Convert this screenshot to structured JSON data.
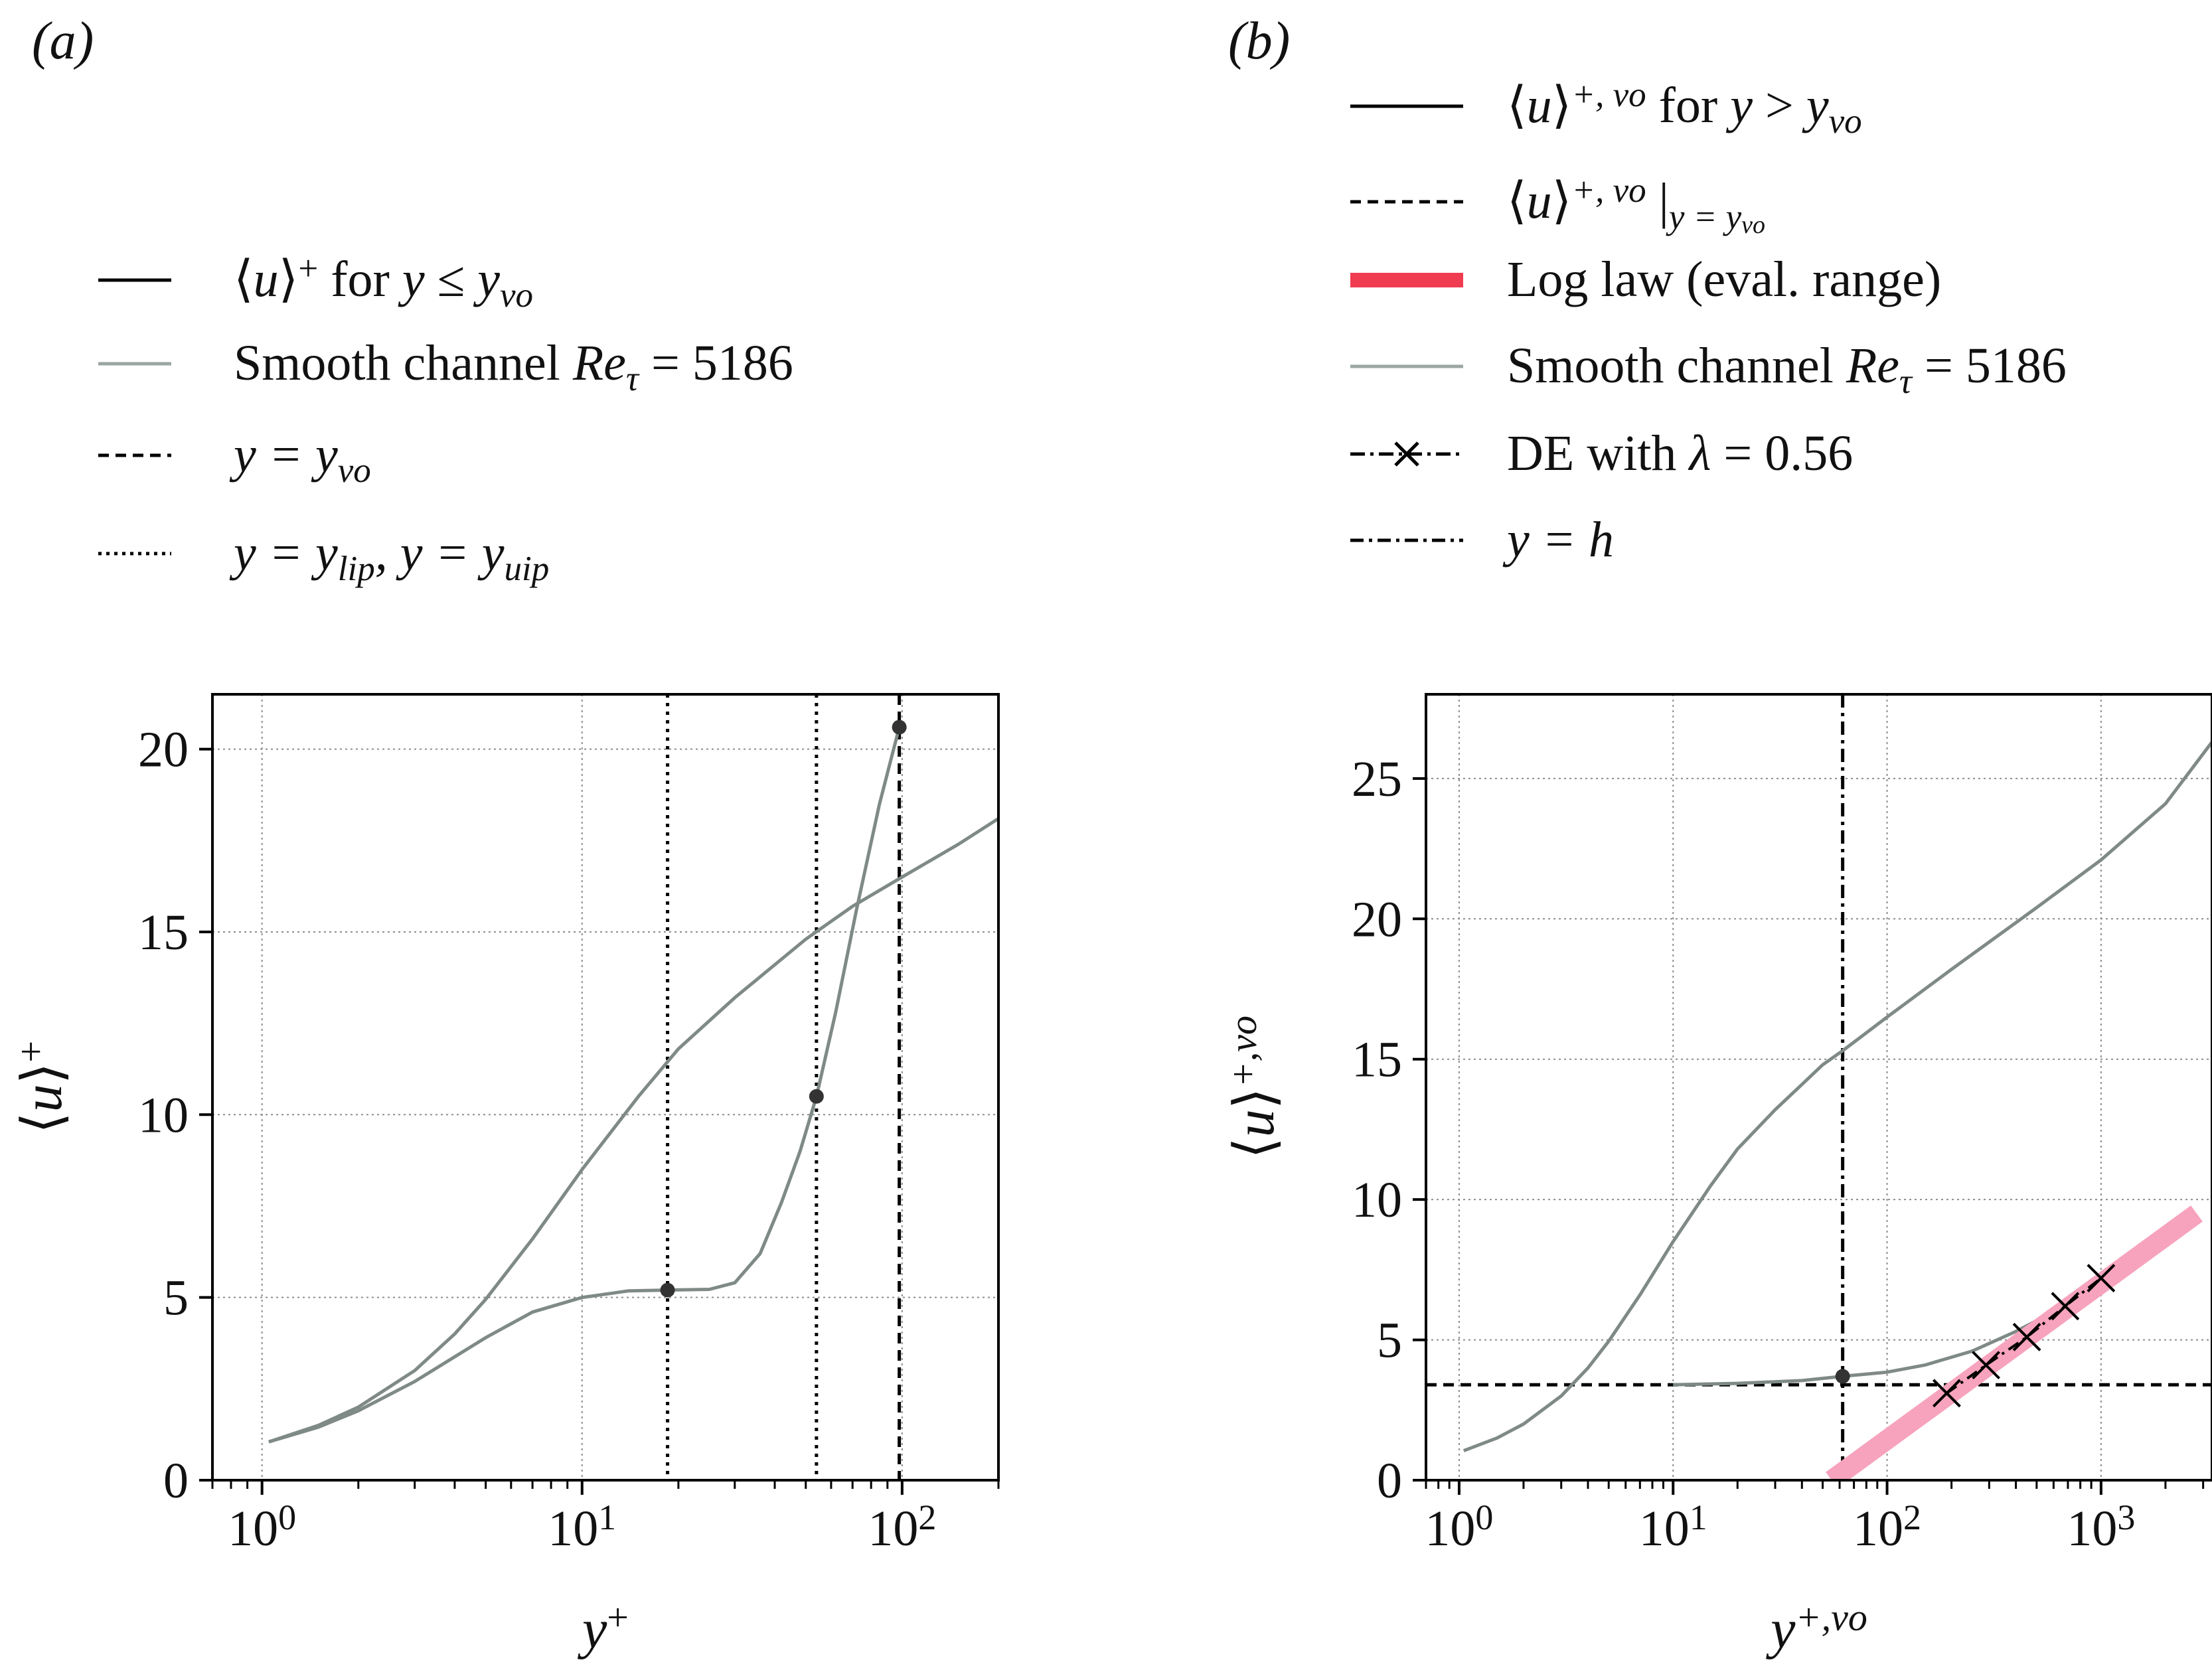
{
  "chart_data": [
    {
      "panel_label": "(a)",
      "type": "line",
      "x_scale": "log",
      "xlabel": "y+",
      "ylabel": "⟨u⟩+",
      "xlim": [
        0.7,
        200
      ],
      "ylim": [
        0,
        21.5
      ],
      "yticks": [
        0,
        5,
        10,
        15,
        20
      ],
      "xticks": [
        {
          "base": "10",
          "exp": "0"
        },
        {
          "base": "10",
          "exp": "1"
        },
        {
          "base": "10",
          "exp": "2"
        }
      ],
      "grid": true,
      "legend_position": "top, above plot",
      "legend": [
        {
          "style": "solid-black",
          "parts": [
            [
              "⟨",
              ""
            ],
            [
              "u",
              "it"
            ],
            [
              "⟩",
              ""
            ],
            [
              "+",
              "sup"
            ],
            [
              " for ",
              ""
            ],
            [
              "y",
              "it"
            ],
            [
              " ≤ ",
              ""
            ],
            [
              "y",
              "it"
            ],
            [
              "vo",
              "sub-it"
            ]
          ]
        },
        {
          "style": "solid-grey",
          "parts": [
            [
              "Smooth channel ",
              ""
            ],
            [
              "Re",
              "it"
            ],
            [
              "τ",
              "sub-it"
            ],
            [
              " = 5186",
              ""
            ]
          ]
        },
        {
          "style": "dashed",
          "parts": [
            [
              "y",
              "it"
            ],
            [
              " = ",
              "it"
            ],
            [
              "y",
              "it"
            ],
            [
              "vo",
              "sub-it"
            ]
          ]
        },
        {
          "style": "dotted",
          "parts": [
            [
              "y",
              "it"
            ],
            [
              " = ",
              "it"
            ],
            [
              "y",
              "it"
            ],
            [
              "lip",
              "sub-it"
            ],
            [
              ", ",
              "it"
            ],
            [
              "y",
              "it"
            ],
            [
              " = ",
              "it"
            ],
            [
              "y",
              "it"
            ],
            [
              "uip",
              "sub-it"
            ]
          ]
        }
      ],
      "series": [
        {
          "name": "Smooth channel Reτ = 5186",
          "color": "#7f8a87",
          "x": [
            1.05,
            1.5,
            2,
            3,
            4,
            5,
            7,
            10,
            15,
            20,
            30,
            40,
            50,
            70,
            100,
            150,
            200
          ],
          "y": [
            1.05,
            1.5,
            2.0,
            3.0,
            4.0,
            4.95,
            6.6,
            8.5,
            10.5,
            11.8,
            13.2,
            14.1,
            14.8,
            15.7,
            16.5,
            17.4,
            18.1
          ]
        },
        {
          "name": "⟨u⟩+ for y ≤ yvo",
          "color": "#7f8a87",
          "x": [
            1.05,
            1.5,
            2,
            3,
            5,
            7,
            10,
            14,
            18.5,
            25,
            30,
            36,
            42,
            48,
            54,
            62,
            72,
            85,
            98
          ],
          "y": [
            1.05,
            1.45,
            1.9,
            2.7,
            3.9,
            4.6,
            5.0,
            5.18,
            5.2,
            5.22,
            5.4,
            6.2,
            7.6,
            9.0,
            10.5,
            12.8,
            15.6,
            18.5,
            20.6
          ]
        }
      ],
      "markers": [
        {
          "x": 18.5,
          "y": 5.2
        },
        {
          "x": 54,
          "y": 10.5
        },
        {
          "x": 98,
          "y": 20.6
        }
      ],
      "vlines": [
        {
          "x": 18.5,
          "style": "dotted"
        },
        {
          "x": 54,
          "style": "dotted"
        },
        {
          "x": 98,
          "style": "dashed"
        }
      ]
    },
    {
      "panel_label": "(b)",
      "type": "line",
      "x_scale": "log",
      "xlabel": "y+,vo",
      "ylabel": "⟨u⟩+,vo",
      "xlim": [
        0.7,
        3300
      ],
      "ylim": [
        0,
        28
      ],
      "yticks": [
        0,
        5,
        10,
        15,
        20,
        25
      ],
      "xticks": [
        {
          "base": "10",
          "exp": "0"
        },
        {
          "base": "10",
          "exp": "1"
        },
        {
          "base": "10",
          "exp": "2"
        },
        {
          "base": "10",
          "exp": "3"
        }
      ],
      "grid": true,
      "legend_position": "top, above plot",
      "legend": [
        {
          "style": "solid-black",
          "parts": [
            [
              "⟨",
              ""
            ],
            [
              "u",
              "it"
            ],
            [
              "⟩",
              ""
            ],
            [
              "+, vo",
              "sup-it"
            ],
            [
              " for ",
              ""
            ],
            [
              "y",
              "it"
            ],
            [
              " > ",
              ""
            ],
            [
              "y",
              "it"
            ],
            [
              "vo",
              "sub-it"
            ]
          ]
        },
        {
          "style": "dashed",
          "parts": [
            [
              "⟨",
              ""
            ],
            [
              "u",
              "it"
            ],
            [
              "⟩",
              ""
            ],
            [
              "+, vo",
              "sup-it"
            ],
            [
              " |",
              ""
            ],
            [
              "y = y",
              "sub-it"
            ],
            [
              "vo",
              "subsub-it"
            ]
          ]
        },
        {
          "style": "red-thick",
          "parts": [
            [
              "Log law (eval. range)",
              ""
            ]
          ]
        },
        {
          "style": "solid-grey",
          "parts": [
            [
              "Smooth channel ",
              ""
            ],
            [
              "Re",
              "it"
            ],
            [
              "τ",
              "sub-it"
            ],
            [
              " = 5186",
              ""
            ]
          ]
        },
        {
          "style": "cross-dashdot",
          "parts": [
            [
              "DE with ",
              ""
            ],
            [
              "λ",
              "it"
            ],
            [
              " = 0.56",
              ""
            ]
          ]
        },
        {
          "style": "dashdot",
          "parts": [
            [
              "y",
              "it"
            ],
            [
              " = ",
              "it"
            ],
            [
              "h",
              "it"
            ]
          ]
        }
      ],
      "series": [
        {
          "name": "Smooth channel Reτ = 5186",
          "color": "#7f8a87",
          "x": [
            1.05,
            1.5,
            2,
            3,
            4,
            5,
            7,
            10,
            15,
            20,
            30,
            40,
            50,
            62,
            100,
            200,
            500,
            1000,
            2000,
            3300
          ],
          "y": [
            1.05,
            1.5,
            2.0,
            3.0,
            4.0,
            4.95,
            6.6,
            8.5,
            10.5,
            11.8,
            13.2,
            14.1,
            14.8,
            15.3,
            16.5,
            18.2,
            20.4,
            22.1,
            24.1,
            26.3
          ]
        },
        {
          "name": "⟨u⟩+ for y ≤ yvo (rescaled)",
          "color": "#7f8a87",
          "x": [
            10,
            20,
            40,
            62,
            100,
            150,
            250,
            400,
            600,
            1000,
            1500,
            2400
          ],
          "y": [
            3.4,
            3.45,
            3.55,
            3.7,
            3.85,
            4.1,
            4.6,
            5.3,
            6.0,
            7.0,
            7.8,
            8.8
          ]
        },
        {
          "name": "⟨u⟩+,vo for y > yvo",
          "color": "#000000",
          "x": [
            180,
            250,
            400,
            700,
            1000,
            1500,
            2200
          ],
          "y": [
            3.0,
            3.7,
            4.8,
            6.1,
            7.0,
            7.9,
            8.8
          ]
        },
        {
          "name": "Log law (eval. range)",
          "color": "#f03c50",
          "x": [
            800,
            2300
          ],
          "y": [
            6.6,
            9.0
          ]
        },
        {
          "name": "Log law (extended)",
          "color": "#f7a3bd",
          "x": [
            55,
            2800
          ],
          "y": [
            0,
            9.5
          ]
        },
        {
          "name": "DE with λ = 0.56",
          "color": "#000000",
          "x": [
            190,
            290,
            450,
            680,
            1000
          ],
          "y": [
            3.1,
            4.1,
            5.1,
            6.2,
            7.2
          ]
        }
      ],
      "markers": [
        {
          "x": 62,
          "y": 3.7
        }
      ],
      "hlines": [
        {
          "y": 3.4,
          "style": "dashed"
        }
      ],
      "vlines": [
        {
          "x": 62,
          "style": "dashdot"
        }
      ]
    }
  ]
}
